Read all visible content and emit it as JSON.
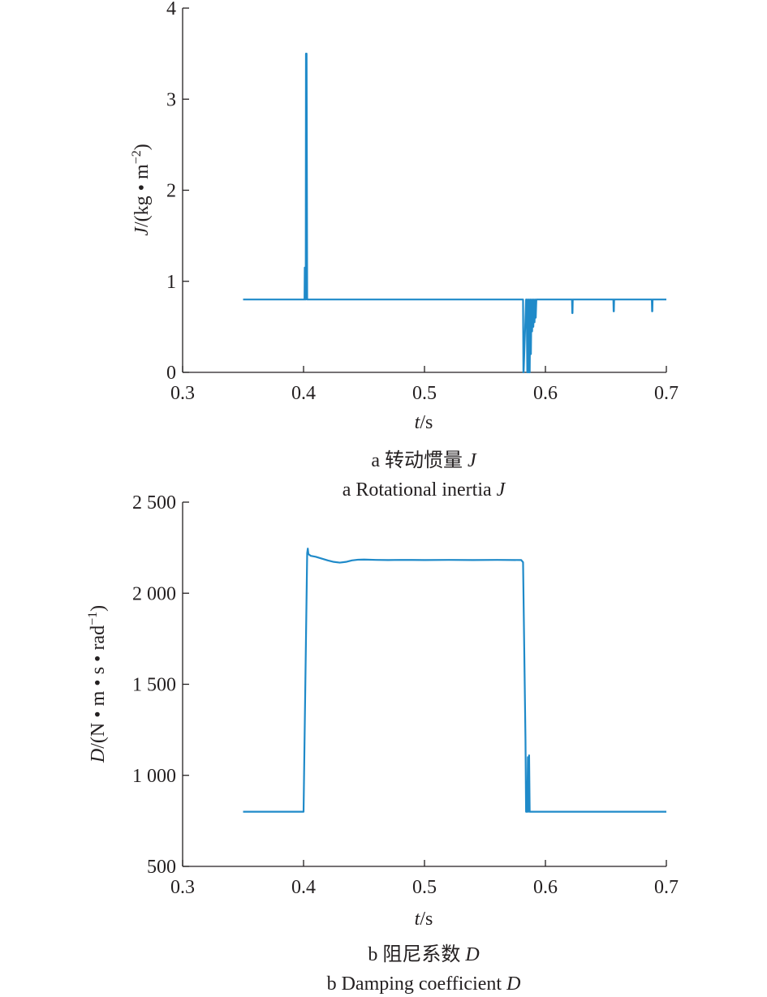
{
  "chart_data": [
    {
      "type": "line",
      "xlabel_var": "t",
      "xlabel_unit": "/s",
      "ylabel_var": "J",
      "ylabel_unit": "/(kg • m",
      "ylabel_sup": "−2",
      "ylabel_tail": ")",
      "xlim": [
        0.3,
        0.7
      ],
      "ylim": [
        0,
        4
      ],
      "xticks": [
        0.3,
        0.4,
        0.5,
        0.6,
        0.7
      ],
      "xtick_labels": [
        "0.3",
        "0.4",
        "0.5",
        "0.6",
        "0.7"
      ],
      "yticks": [
        0,
        1,
        2,
        3,
        4
      ],
      "ytick_labels": [
        "0",
        "1",
        "2",
        "3",
        "4"
      ],
      "color": "#1f8ac9",
      "caption_cn": "a  转动惯量 ",
      "caption_cn_var": "J",
      "caption_en": "a  Rotational inertia ",
      "caption_en_var": "J",
      "series": [
        {
          "x": [
            0.35,
            0.4,
            0.4008,
            0.401,
            0.4012,
            0.4018,
            0.402,
            0.4025,
            0.403,
            0.404,
            0.5,
            0.58,
            0.5815,
            0.5818,
            0.582,
            0.584,
            0.5845,
            0.585,
            0.5855,
            0.586,
            0.5865,
            0.587,
            0.5875,
            0.588,
            0.5885,
            0.589,
            0.5895,
            0.59,
            0.5905,
            0.591,
            0.5915,
            0.592,
            0.5925,
            0.593,
            0.6,
            0.622,
            0.6222,
            0.6224,
            0.6226,
            0.66,
            0.6562,
            0.6564,
            0.6566,
            0.6568,
            0.688,
            0.6882,
            0.6884,
            0.6886,
            0.7
          ],
          "y": [
            0.8,
            0.8,
            0.8,
            1.15,
            0.8,
            0.8,
            3.5,
            3.5,
            0.8,
            0.8,
            0.8,
            0.8,
            0.8,
            0.0,
            0.0,
            0.8,
            0.8,
            0.0,
            0.8,
            0.0,
            0.8,
            0.0,
            0.8,
            0.2,
            0.8,
            0.45,
            0.8,
            0.5,
            0.8,
            0.55,
            0.8,
            0.6,
            0.8,
            0.8,
            0.8,
            0.8,
            0.65,
            0.65,
            0.8,
            0.8,
            0.8,
            0.67,
            0.67,
            0.8,
            0.8,
            0.67,
            0.67,
            0.8,
            0.8
          ]
        }
      ]
    },
    {
      "type": "line",
      "xlabel_var": "t",
      "xlabel_unit": "/s",
      "ylabel_var": "D",
      "ylabel_unit": "/(N • m • s • rad",
      "ylabel_sup": "−1",
      "ylabel_tail": ")",
      "xlim": [
        0.3,
        0.7
      ],
      "ylim": [
        500,
        2500
      ],
      "xticks": [
        0.3,
        0.4,
        0.5,
        0.6,
        0.7
      ],
      "xtick_labels": [
        "0.3",
        "0.4",
        "0.5",
        "0.6",
        "0.7"
      ],
      "yticks": [
        500,
        1000,
        1500,
        2000,
        2500
      ],
      "ytick_labels": [
        "500",
        "1 000",
        "1 500",
        "2 000",
        "2 500"
      ],
      "color": "#1f8ac9",
      "caption_cn": "b  阻尼系数 ",
      "caption_cn_var": "D",
      "caption_en": "b  Damping coefficient ",
      "caption_en_var": "D",
      "series": [
        {
          "x": [
            0.35,
            0.4,
            0.403,
            0.4035,
            0.404,
            0.406,
            0.41,
            0.415,
            0.42,
            0.425,
            0.43,
            0.435,
            0.44,
            0.445,
            0.45,
            0.46,
            0.47,
            0.48,
            0.5,
            0.52,
            0.54,
            0.56,
            0.58,
            0.5815,
            0.5835,
            0.584,
            0.585,
            0.5855,
            0.586,
            0.5865,
            0.587,
            0.5875,
            0.588,
            0.6,
            0.7
          ],
          "y": [
            800,
            800,
            2220,
            2245,
            2215,
            2205,
            2200,
            2190,
            2180,
            2172,
            2168,
            2172,
            2180,
            2184,
            2185,
            2183,
            2182,
            2183,
            2182,
            2183,
            2182,
            2183,
            2182,
            2170,
            1200,
            800,
            800,
            1100,
            800,
            1110,
            800,
            800,
            800,
            800,
            800
          ]
        }
      ]
    }
  ]
}
